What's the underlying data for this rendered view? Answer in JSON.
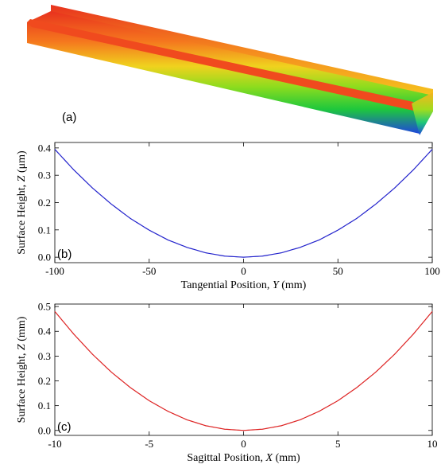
{
  "figure": {
    "panel_a": {
      "label": "(a)"
    }
  },
  "chart_data": [
    {
      "type": "line",
      "panel_label": "(b)",
      "xlabel": "Tangential Position, Y (mm)",
      "ylabel": "Surface Height, Z (μm)",
      "xlim": [
        -100,
        100
      ],
      "ylim": [
        -0.02,
        0.42
      ],
      "xticks": [
        -100,
        -50,
        0,
        50,
        100
      ],
      "yticks": [
        0.0,
        0.1,
        0.2,
        0.3,
        0.4
      ],
      "ytick_labels": [
        "0.0",
        "0.1",
        "0.2",
        "0.3",
        "0.4"
      ],
      "grid": false,
      "series": [
        {
          "color": "#2222cc",
          "x": [
            -100,
            -90,
            -80,
            -70,
            -60,
            -50,
            -40,
            -30,
            -20,
            -10,
            0,
            10,
            20,
            30,
            40,
            50,
            60,
            70,
            80,
            90,
            100
          ],
          "y": [
            0.395,
            0.32,
            0.253,
            0.194,
            0.142,
            0.099,
            0.063,
            0.036,
            0.016,
            0.004,
            0.0,
            0.004,
            0.016,
            0.036,
            0.063,
            0.099,
            0.142,
            0.194,
            0.253,
            0.32,
            0.395
          ]
        }
      ]
    },
    {
      "type": "line",
      "panel_label": "(c)",
      "xlabel": "Sagittal Position, X (mm)",
      "ylabel": "Surface Height, Z (mm)",
      "xlim": [
        -10,
        10
      ],
      "ylim": [
        -0.02,
        0.51
      ],
      "xticks": [
        -10,
        -5,
        0,
        5,
        10
      ],
      "yticks": [
        0.0,
        0.1,
        0.2,
        0.3,
        0.4,
        0.5
      ],
      "ytick_labels": [
        "0.0",
        "0.1",
        "0.2",
        "0.3",
        "0.4",
        "0.5"
      ],
      "grid": false,
      "series": [
        {
          "color": "#dd2222",
          "x": [
            -10,
            -9,
            -8,
            -7,
            -6,
            -5,
            -4,
            -3,
            -2,
            -1,
            0,
            1,
            2,
            3,
            4,
            5,
            6,
            7,
            8,
            9,
            10
          ],
          "y": [
            0.48,
            0.389,
            0.307,
            0.235,
            0.173,
            0.12,
            0.077,
            0.043,
            0.019,
            0.005,
            0.0,
            0.005,
            0.019,
            0.043,
            0.077,
            0.12,
            0.173,
            0.235,
            0.307,
            0.389,
            0.48
          ]
        }
      ]
    }
  ]
}
